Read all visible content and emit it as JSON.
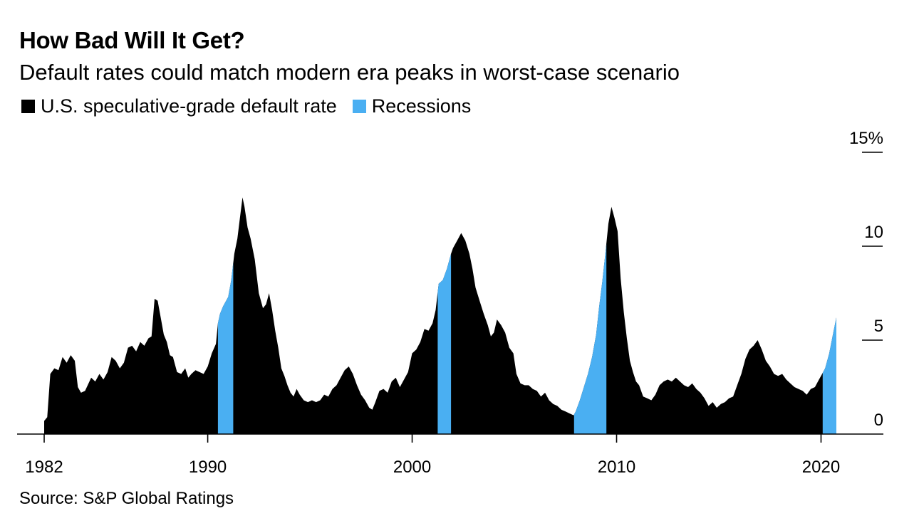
{
  "title": "How Bad Will It Get?",
  "subtitle": "Default rates could match modern era peaks in worst-case scenario",
  "source": "Source: S&P Global Ratings",
  "colors": {
    "default_rate": "#000000",
    "recession": "#4aaff2",
    "axis": "#000000"
  },
  "chart_data": {
    "type": "area",
    "title": "How Bad Will It Get?",
    "subtitle": "Default rates could match modern era peaks in worst-case scenario",
    "legend_position": "top-left",
    "xlabel": "",
    "ylabel": "",
    "xlim": [
      1982,
      2022.5
    ],
    "ylim": [
      0,
      15
    ],
    "x_ticks": [
      1982,
      1990,
      2000,
      2010,
      2020
    ],
    "y_ticks": [
      0,
      5,
      10,
      15
    ],
    "y_tick_labels": [
      "0",
      "5",
      "10",
      "15%"
    ],
    "grid": false,
    "series": [
      {
        "name": "U.S. speculative-grade default rate",
        "color": "#000000",
        "points": [
          [
            1982.0,
            0.7
          ],
          [
            1982.15,
            0.9
          ],
          [
            1982.3,
            3.2
          ],
          [
            1982.5,
            3.5
          ],
          [
            1982.7,
            3.4
          ],
          [
            1982.9,
            4.1
          ],
          [
            1983.1,
            3.8
          ],
          [
            1983.3,
            4.2
          ],
          [
            1983.5,
            3.9
          ],
          [
            1983.65,
            2.5
          ],
          [
            1983.8,
            2.2
          ],
          [
            1984.0,
            2.3
          ],
          [
            1984.3,
            3.0
          ],
          [
            1984.5,
            2.8
          ],
          [
            1984.7,
            3.2
          ],
          [
            1984.9,
            2.9
          ],
          [
            1985.1,
            3.3
          ],
          [
            1985.3,
            4.1
          ],
          [
            1985.5,
            3.9
          ],
          [
            1985.7,
            3.5
          ],
          [
            1985.9,
            3.8
          ],
          [
            1986.1,
            4.6
          ],
          [
            1986.3,
            4.7
          ],
          [
            1986.5,
            4.4
          ],
          [
            1986.7,
            4.9
          ],
          [
            1986.9,
            4.7
          ],
          [
            1987.1,
            5.1
          ],
          [
            1987.25,
            5.2
          ],
          [
            1987.4,
            7.2
          ],
          [
            1987.55,
            7.1
          ],
          [
            1987.7,
            6.2
          ],
          [
            1987.85,
            5.3
          ],
          [
            1988.0,
            4.9
          ],
          [
            1988.15,
            4.2
          ],
          [
            1988.3,
            4.1
          ],
          [
            1988.5,
            3.3
          ],
          [
            1988.7,
            3.2
          ],
          [
            1988.9,
            3.5
          ],
          [
            1989.05,
            3.0
          ],
          [
            1989.2,
            3.2
          ],
          [
            1989.4,
            3.4
          ],
          [
            1989.6,
            3.3
          ],
          [
            1989.8,
            3.2
          ],
          [
            1990.0,
            3.6
          ],
          [
            1990.2,
            4.3
          ],
          [
            1990.4,
            4.8
          ],
          [
            1990.5,
            5.9
          ],
          [
            1990.6,
            6.4
          ],
          [
            1990.75,
            6.8
          ],
          [
            1990.9,
            7.1
          ],
          [
            1991.0,
            7.3
          ],
          [
            1991.15,
            8.2
          ],
          [
            1991.3,
            9.6
          ],
          [
            1991.45,
            10.4
          ],
          [
            1991.55,
            11.3
          ],
          [
            1991.7,
            12.6
          ],
          [
            1991.8,
            12.1
          ],
          [
            1991.95,
            11.0
          ],
          [
            1992.1,
            10.4
          ],
          [
            1992.3,
            9.3
          ],
          [
            1992.5,
            7.5
          ],
          [
            1992.7,
            6.7
          ],
          [
            1992.85,
            6.9
          ],
          [
            1993.0,
            7.5
          ],
          [
            1993.15,
            6.6
          ],
          [
            1993.3,
            5.5
          ],
          [
            1993.45,
            4.6
          ],
          [
            1993.6,
            3.5
          ],
          [
            1993.75,
            3.1
          ],
          [
            1993.9,
            2.6
          ],
          [
            1994.05,
            2.2
          ],
          [
            1994.2,
            2.0
          ],
          [
            1994.35,
            2.4
          ],
          [
            1994.5,
            2.1
          ],
          [
            1994.7,
            1.8
          ],
          [
            1994.9,
            1.7
          ],
          [
            1995.1,
            1.8
          ],
          [
            1995.3,
            1.7
          ],
          [
            1995.5,
            1.8
          ],
          [
            1995.7,
            2.1
          ],
          [
            1995.9,
            2.0
          ],
          [
            1996.1,
            2.4
          ],
          [
            1996.3,
            2.6
          ],
          [
            1996.5,
            3.0
          ],
          [
            1996.7,
            3.4
          ],
          [
            1996.9,
            3.6
          ],
          [
            1997.1,
            3.2
          ],
          [
            1997.3,
            2.6
          ],
          [
            1997.5,
            2.1
          ],
          [
            1997.7,
            1.8
          ],
          [
            1997.9,
            1.4
          ],
          [
            1998.05,
            1.3
          ],
          [
            1998.2,
            1.7
          ],
          [
            1998.4,
            2.3
          ],
          [
            1998.6,
            2.4
          ],
          [
            1998.8,
            2.2
          ],
          [
            1999.0,
            2.8
          ],
          [
            1999.2,
            3.0
          ],
          [
            1999.4,
            2.5
          ],
          [
            1999.6,
            2.9
          ],
          [
            1999.8,
            3.3
          ],
          [
            2000.0,
            4.3
          ],
          [
            2000.2,
            4.5
          ],
          [
            2000.4,
            4.9
          ],
          [
            2000.6,
            5.6
          ],
          [
            2000.8,
            5.5
          ],
          [
            2001.0,
            5.9
          ],
          [
            2001.15,
            6.6
          ],
          [
            2001.3,
            8.0
          ],
          [
            2001.5,
            8.2
          ],
          [
            2001.7,
            8.8
          ],
          [
            2001.9,
            9.6
          ],
          [
            2002.0,
            9.9
          ],
          [
            2002.1,
            10.1
          ],
          [
            2002.2,
            10.3
          ],
          [
            2002.4,
            10.7
          ],
          [
            2002.6,
            10.3
          ],
          [
            2002.8,
            9.6
          ],
          [
            2002.95,
            8.8
          ],
          [
            2003.1,
            7.8
          ],
          [
            2003.3,
            7.1
          ],
          [
            2003.5,
            6.4
          ],
          [
            2003.7,
            5.8
          ],
          [
            2003.85,
            5.2
          ],
          [
            2004.0,
            5.4
          ],
          [
            2004.15,
            6.1
          ],
          [
            2004.35,
            5.8
          ],
          [
            2004.55,
            5.4
          ],
          [
            2004.75,
            4.6
          ],
          [
            2004.95,
            4.3
          ],
          [
            2005.1,
            3.2
          ],
          [
            2005.3,
            2.7
          ],
          [
            2005.5,
            2.6
          ],
          [
            2005.7,
            2.6
          ],
          [
            2005.9,
            2.4
          ],
          [
            2006.1,
            2.3
          ],
          [
            2006.3,
            2.0
          ],
          [
            2006.5,
            2.2
          ],
          [
            2006.7,
            1.8
          ],
          [
            2006.9,
            1.6
          ],
          [
            2007.1,
            1.5
          ],
          [
            2007.3,
            1.3
          ],
          [
            2007.5,
            1.2
          ],
          [
            2007.7,
            1.1
          ],
          [
            2007.9,
            1.0
          ],
          [
            2008.0,
            1.2
          ],
          [
            2008.2,
            1.8
          ],
          [
            2008.4,
            2.5
          ],
          [
            2008.6,
            3.2
          ],
          [
            2008.8,
            4.1
          ],
          [
            2009.0,
            5.3
          ],
          [
            2009.15,
            6.8
          ],
          [
            2009.3,
            8.1
          ],
          [
            2009.45,
            9.6
          ],
          [
            2009.6,
            11.2
          ],
          [
            2009.75,
            12.1
          ],
          [
            2009.9,
            11.5
          ],
          [
            2010.05,
            10.8
          ],
          [
            2010.2,
            8.3
          ],
          [
            2010.35,
            6.5
          ],
          [
            2010.5,
            5.1
          ],
          [
            2010.65,
            3.9
          ],
          [
            2010.8,
            3.3
          ],
          [
            2010.95,
            2.8
          ],
          [
            2011.1,
            2.6
          ],
          [
            2011.3,
            2.0
          ],
          [
            2011.5,
            1.9
          ],
          [
            2011.7,
            1.8
          ],
          [
            2011.9,
            2.1
          ],
          [
            2012.1,
            2.6
          ],
          [
            2012.3,
            2.8
          ],
          [
            2012.5,
            2.9
          ],
          [
            2012.7,
            2.8
          ],
          [
            2012.9,
            3.0
          ],
          [
            2013.1,
            2.8
          ],
          [
            2013.3,
            2.6
          ],
          [
            2013.5,
            2.5
          ],
          [
            2013.7,
            2.7
          ],
          [
            2013.9,
            2.4
          ],
          [
            2014.1,
            2.2
          ],
          [
            2014.3,
            1.9
          ],
          [
            2014.5,
            1.5
          ],
          [
            2014.7,
            1.7
          ],
          [
            2014.9,
            1.4
          ],
          [
            2015.1,
            1.6
          ],
          [
            2015.3,
            1.7
          ],
          [
            2015.5,
            1.9
          ],
          [
            2015.7,
            2.0
          ],
          [
            2015.9,
            2.6
          ],
          [
            2016.1,
            3.2
          ],
          [
            2016.3,
            4.0
          ],
          [
            2016.5,
            4.5
          ],
          [
            2016.7,
            4.7
          ],
          [
            2016.9,
            5.0
          ],
          [
            2017.1,
            4.5
          ],
          [
            2017.3,
            3.9
          ],
          [
            2017.5,
            3.6
          ],
          [
            2017.7,
            3.2
          ],
          [
            2017.9,
            3.1
          ],
          [
            2018.1,
            3.2
          ],
          [
            2018.3,
            2.9
          ],
          [
            2018.5,
            2.7
          ],
          [
            2018.7,
            2.5
          ],
          [
            2018.9,
            2.4
          ],
          [
            2019.1,
            2.3
          ],
          [
            2019.3,
            2.1
          ],
          [
            2019.5,
            2.4
          ],
          [
            2019.7,
            2.5
          ],
          [
            2019.9,
            2.9
          ],
          [
            2020.0,
            3.1
          ],
          [
            2020.2,
            3.5
          ],
          [
            2020.4,
            4.3
          ],
          [
            2020.6,
            5.4
          ],
          [
            2020.75,
            6.2
          ]
        ]
      },
      {
        "name": "Recessions",
        "color": "#4aaff2",
        "periods": [
          [
            1990.5,
            1991.25
          ],
          [
            2001.25,
            2001.9
          ],
          [
            2007.92,
            2009.5
          ],
          [
            2020.08,
            2020.75
          ]
        ]
      }
    ]
  }
}
